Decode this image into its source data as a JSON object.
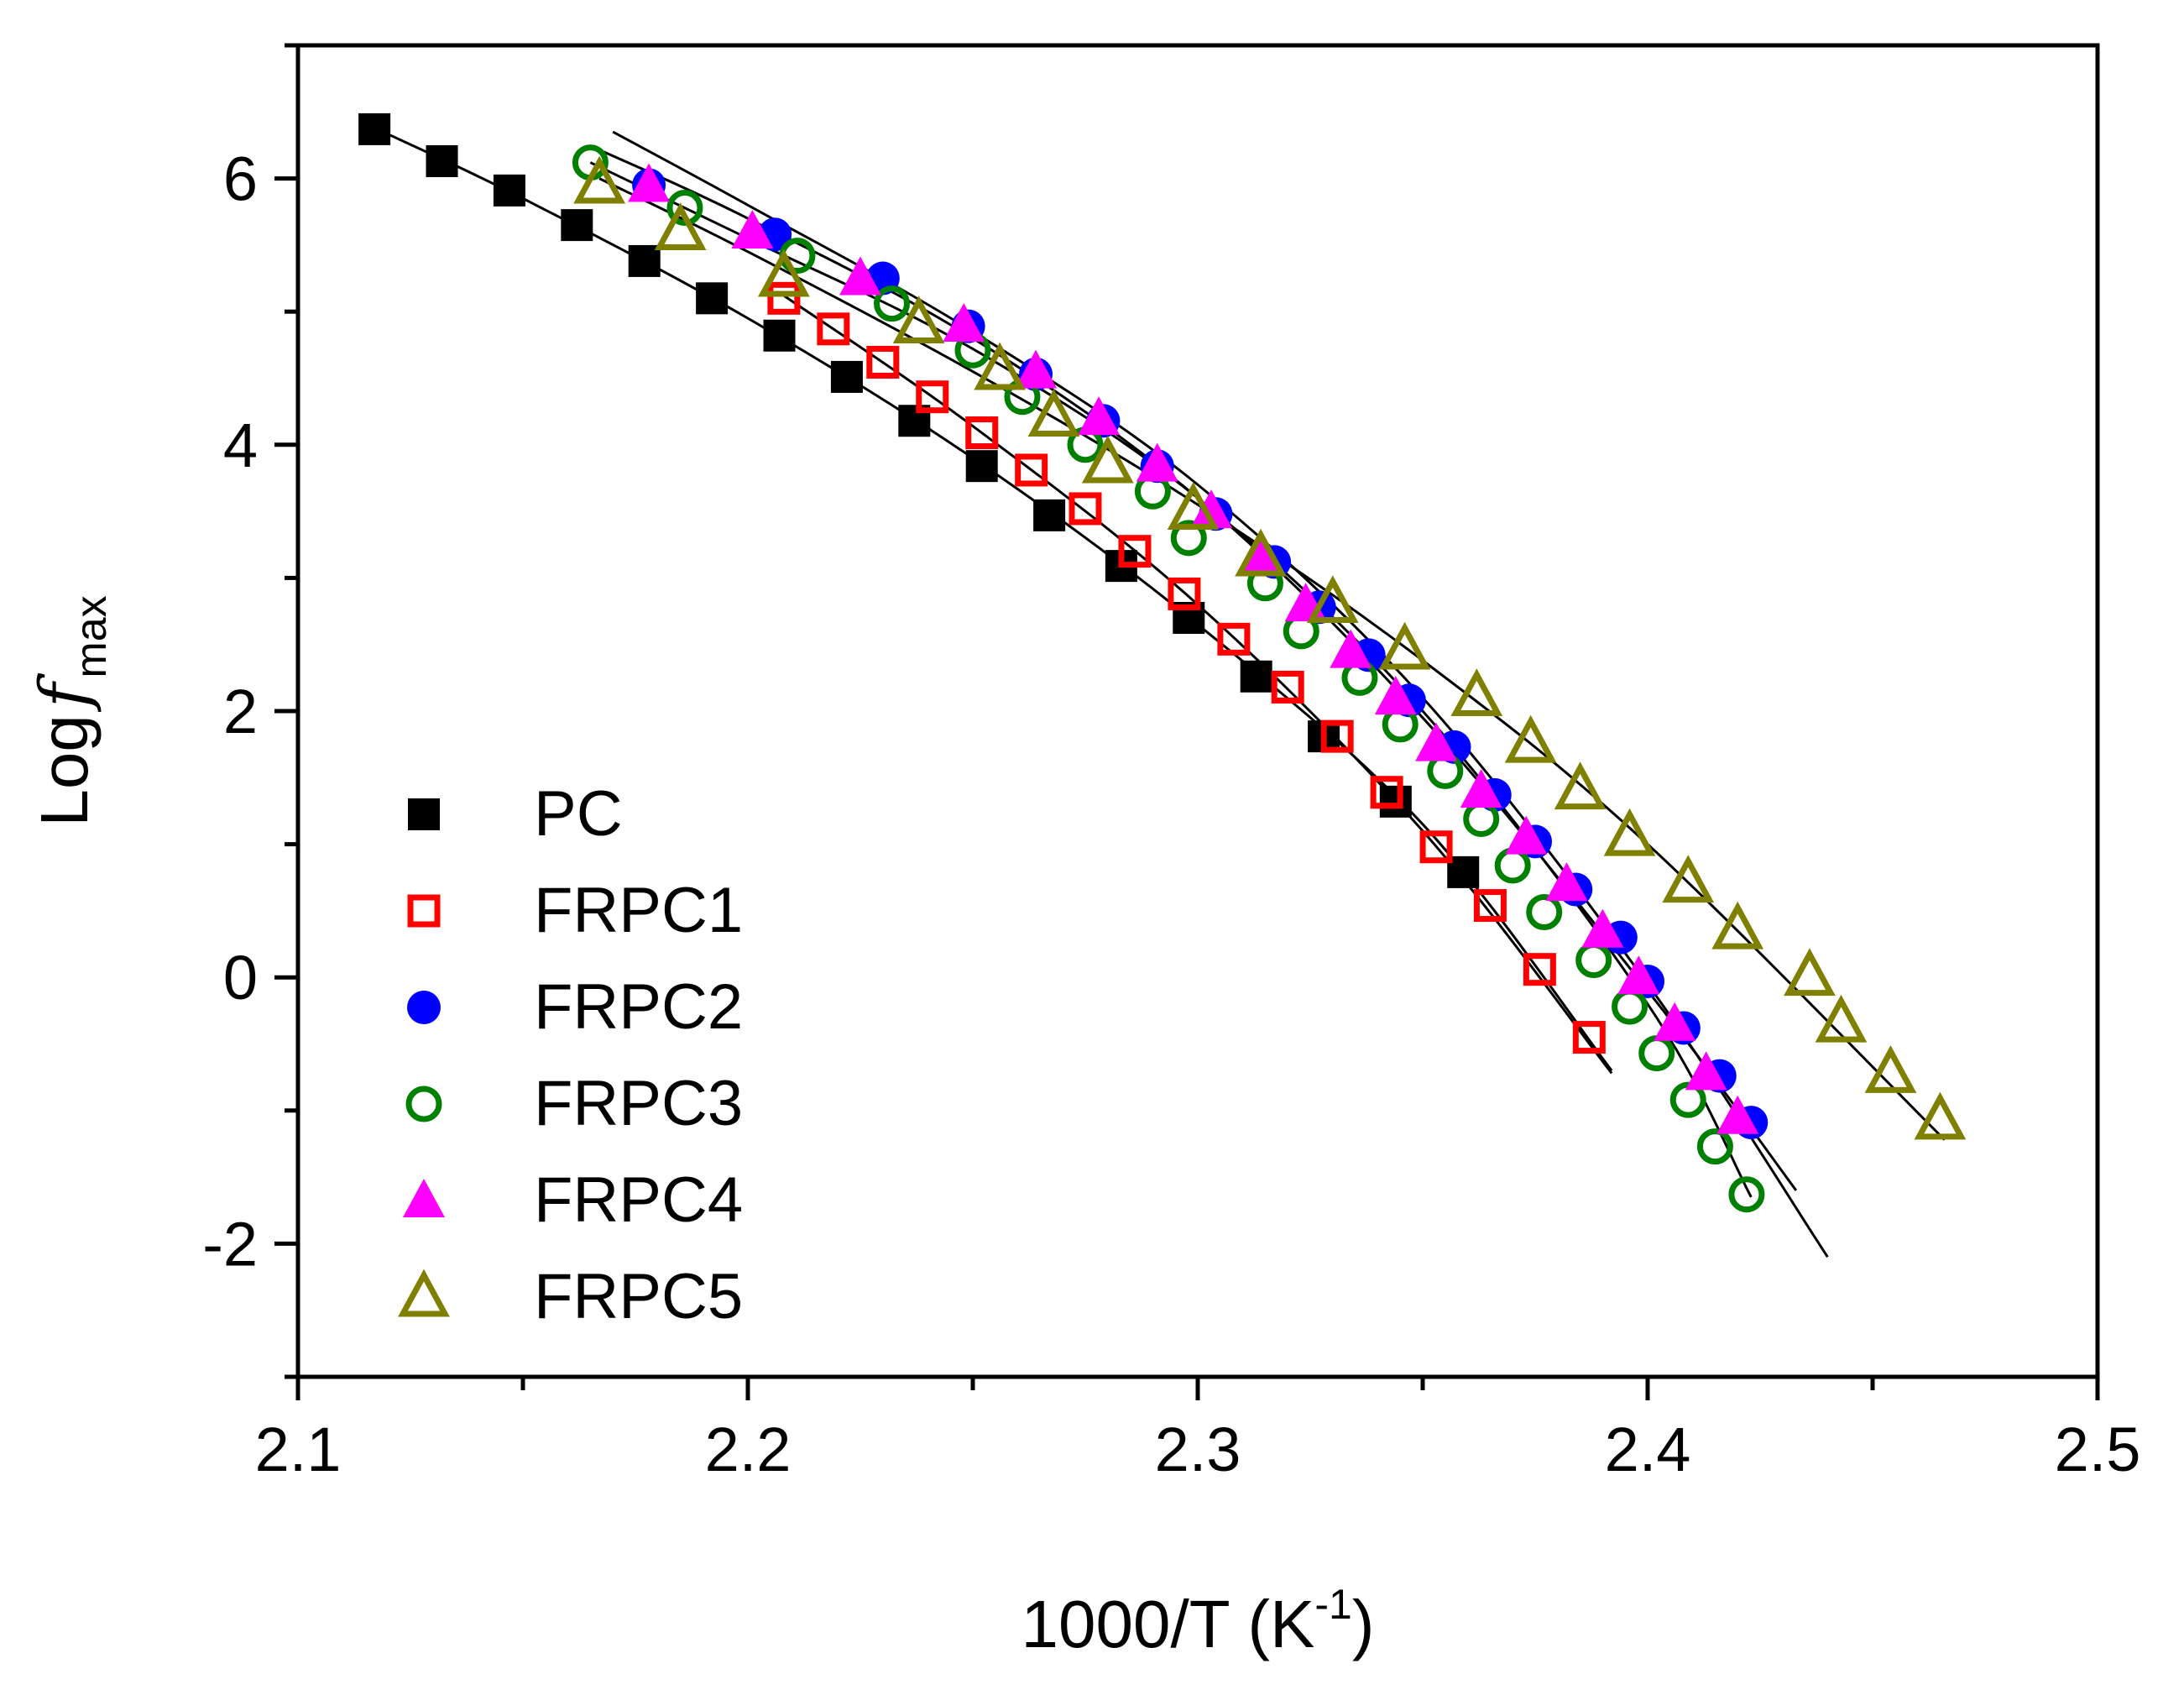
{
  "chart_data": {
    "type": "scatter",
    "title": "",
    "xlabel": {
      "main": "1000/T (K",
      "sup": "-1",
      "tail": ")"
    },
    "ylabel": {
      "main": "Log",
      "italic": "f",
      "sub": "max"
    },
    "xlim": [
      2.1,
      2.5
    ],
    "ylim": [
      -3,
      7
    ],
    "xticks": [
      2.1,
      2.2,
      2.3,
      2.4,
      2.5
    ],
    "xtick_labels": [
      "2.1",
      "2.2",
      "2.3",
      "2.4",
      "2.5"
    ],
    "yticks": [
      -2,
      0,
      2,
      4,
      6
    ],
    "ytick_labels": [
      "-2",
      "0",
      "2",
      "4",
      "6"
    ],
    "legend_position": "bottom-left",
    "series": [
      {
        "name": "PC",
        "marker": "square",
        "filled": true,
        "color": "#000000",
        "x": [
          2.117,
          2.132,
          2.147,
          2.162,
          2.177,
          2.192,
          2.207,
          2.222,
          2.237,
          2.252,
          2.267,
          2.283,
          2.298,
          2.313,
          2.328,
          2.344,
          2.359
        ],
        "y": [
          6.37,
          6.13,
          5.91,
          5.65,
          5.38,
          5.1,
          4.82,
          4.51,
          4.18,
          3.84,
          3.47,
          3.09,
          2.7,
          2.26,
          1.81,
          1.32,
          0.79
        ],
        "fit": {
          "x": [
            2.117,
            2.15,
            2.2,
            2.25,
            2.3,
            2.35,
            2.392
          ],
          "y": [
            6.38,
            5.85,
            4.95,
            3.9,
            2.65,
            1.15,
            -0.7
          ]
        }
      },
      {
        "name": "FRPC1",
        "marker": "square",
        "filled": false,
        "color": "#ff0000",
        "x": [
          2.208,
          2.219,
          2.23,
          2.241,
          2.252,
          2.263,
          2.275,
          2.286,
          2.297,
          2.308,
          2.32,
          2.331,
          2.342,
          2.353,
          2.365,
          2.376,
          2.387
        ],
        "y": [
          5.1,
          4.87,
          4.62,
          4.36,
          4.09,
          3.81,
          3.52,
          3.2,
          2.88,
          2.54,
          2.18,
          1.81,
          1.39,
          0.98,
          0.54,
          0.06,
          -0.45
        ],
        "fit": {
          "x": [
            2.208,
            2.25,
            2.3,
            2.35,
            2.392
          ],
          "y": [
            5.12,
            4.14,
            2.8,
            1.1,
            -0.72
          ]
        }
      },
      {
        "name": "FRPC2",
        "marker": "circle",
        "filled": true,
        "color": "#0000ff",
        "x": [
          2.178,
          2.206,
          2.23,
          2.249,
          2.264,
          2.279,
          2.291,
          2.304,
          2.317,
          2.327,
          2.338,
          2.347,
          2.357,
          2.366,
          2.375,
          2.384,
          2.394,
          2.4,
          2.408,
          2.416,
          2.423
        ],
        "y": [
          5.95,
          5.58,
          5.25,
          4.89,
          4.53,
          4.18,
          3.84,
          3.48,
          3.12,
          2.78,
          2.42,
          2.08,
          1.73,
          1.37,
          1.02,
          0.66,
          0.3,
          -0.03,
          -0.38,
          -0.74,
          -1.09
        ],
        "fit": {
          "x": [
            2.17,
            2.2,
            2.25,
            2.3,
            2.35,
            2.4,
            2.44
          ],
          "y": [
            6.35,
            5.8,
            4.85,
            3.7,
            2.1,
            -0.05,
            -2.1
          ]
        }
      },
      {
        "name": "FRPC3",
        "marker": "circle",
        "filled": false,
        "color": "#008000",
        "x": [
          2.165,
          2.186,
          2.211,
          2.232,
          2.25,
          2.261,
          2.275,
          2.29,
          2.298,
          2.315,
          2.323,
          2.336,
          2.345,
          2.355,
          2.363,
          2.37,
          2.377,
          2.388,
          2.396,
          2.402,
          2.409,
          2.415,
          2.422
        ],
        "y": [
          6.12,
          5.78,
          5.42,
          5.06,
          4.71,
          4.36,
          4.0,
          3.65,
          3.3,
          2.96,
          2.6,
          2.25,
          1.9,
          1.55,
          1.19,
          0.84,
          0.49,
          0.13,
          -0.22,
          -0.57,
          -0.92,
          -1.27,
          -1.63
        ],
        "fit": {
          "x": [
            2.165,
            2.2,
            2.25,
            2.3,
            2.35,
            2.4,
            2.423
          ],
          "y": [
            6.12,
            5.55,
            4.72,
            3.6,
            2.0,
            -0.2,
            -1.65
          ]
        }
      },
      {
        "name": "FRPC4",
        "marker": "triangle",
        "filled": true,
        "color": "#ff00ff",
        "x": [
          2.178,
          2.201,
          2.225,
          2.248,
          2.264,
          2.278,
          2.291,
          2.303,
          2.314,
          2.324,
          2.334,
          2.344,
          2.353,
          2.363,
          2.373,
          2.382,
          2.39,
          2.398,
          2.406,
          2.413,
          2.42
        ],
        "y": [
          5.95,
          5.6,
          5.25,
          4.9,
          4.55,
          4.2,
          3.85,
          3.5,
          3.15,
          2.8,
          2.45,
          2.1,
          1.75,
          1.4,
          1.05,
          0.7,
          0.35,
          0.0,
          -0.35,
          -0.72,
          -1.05
        ],
        "fit": {
          "x": [
            2.168,
            2.2,
            2.25,
            2.3,
            2.35,
            2.4,
            2.433
          ],
          "y": [
            6.2,
            5.7,
            4.8,
            3.6,
            1.95,
            -0.1,
            -1.6
          ]
        }
      },
      {
        "name": "FRPC5",
        "marker": "triangle",
        "filled": false,
        "color": "#808000",
        "x": [
          2.167,
          2.185,
          2.208,
          2.238,
          2.256,
          2.268,
          2.28,
          2.299,
          2.314,
          2.33,
          2.346,
          2.362,
          2.374,
          2.385,
          2.396,
          2.409,
          2.42,
          2.436,
          2.443,
          2.454,
          2.465
        ],
        "y": [
          5.96,
          5.61,
          5.26,
          4.91,
          4.56,
          4.21,
          3.86,
          3.51,
          3.16,
          2.81,
          2.46,
          2.11,
          1.76,
          1.41,
          1.06,
          0.71,
          0.36,
          0.01,
          -0.34,
          -0.72,
          -1.07
        ],
        "fit": {
          "x": [
            2.167,
            2.2,
            2.25,
            2.3,
            2.35,
            2.4,
            2.466
          ],
          "y": [
            6.0,
            5.45,
            4.55,
            3.55,
            2.38,
            1.0,
            -1.22
          ]
        }
      }
    ]
  }
}
